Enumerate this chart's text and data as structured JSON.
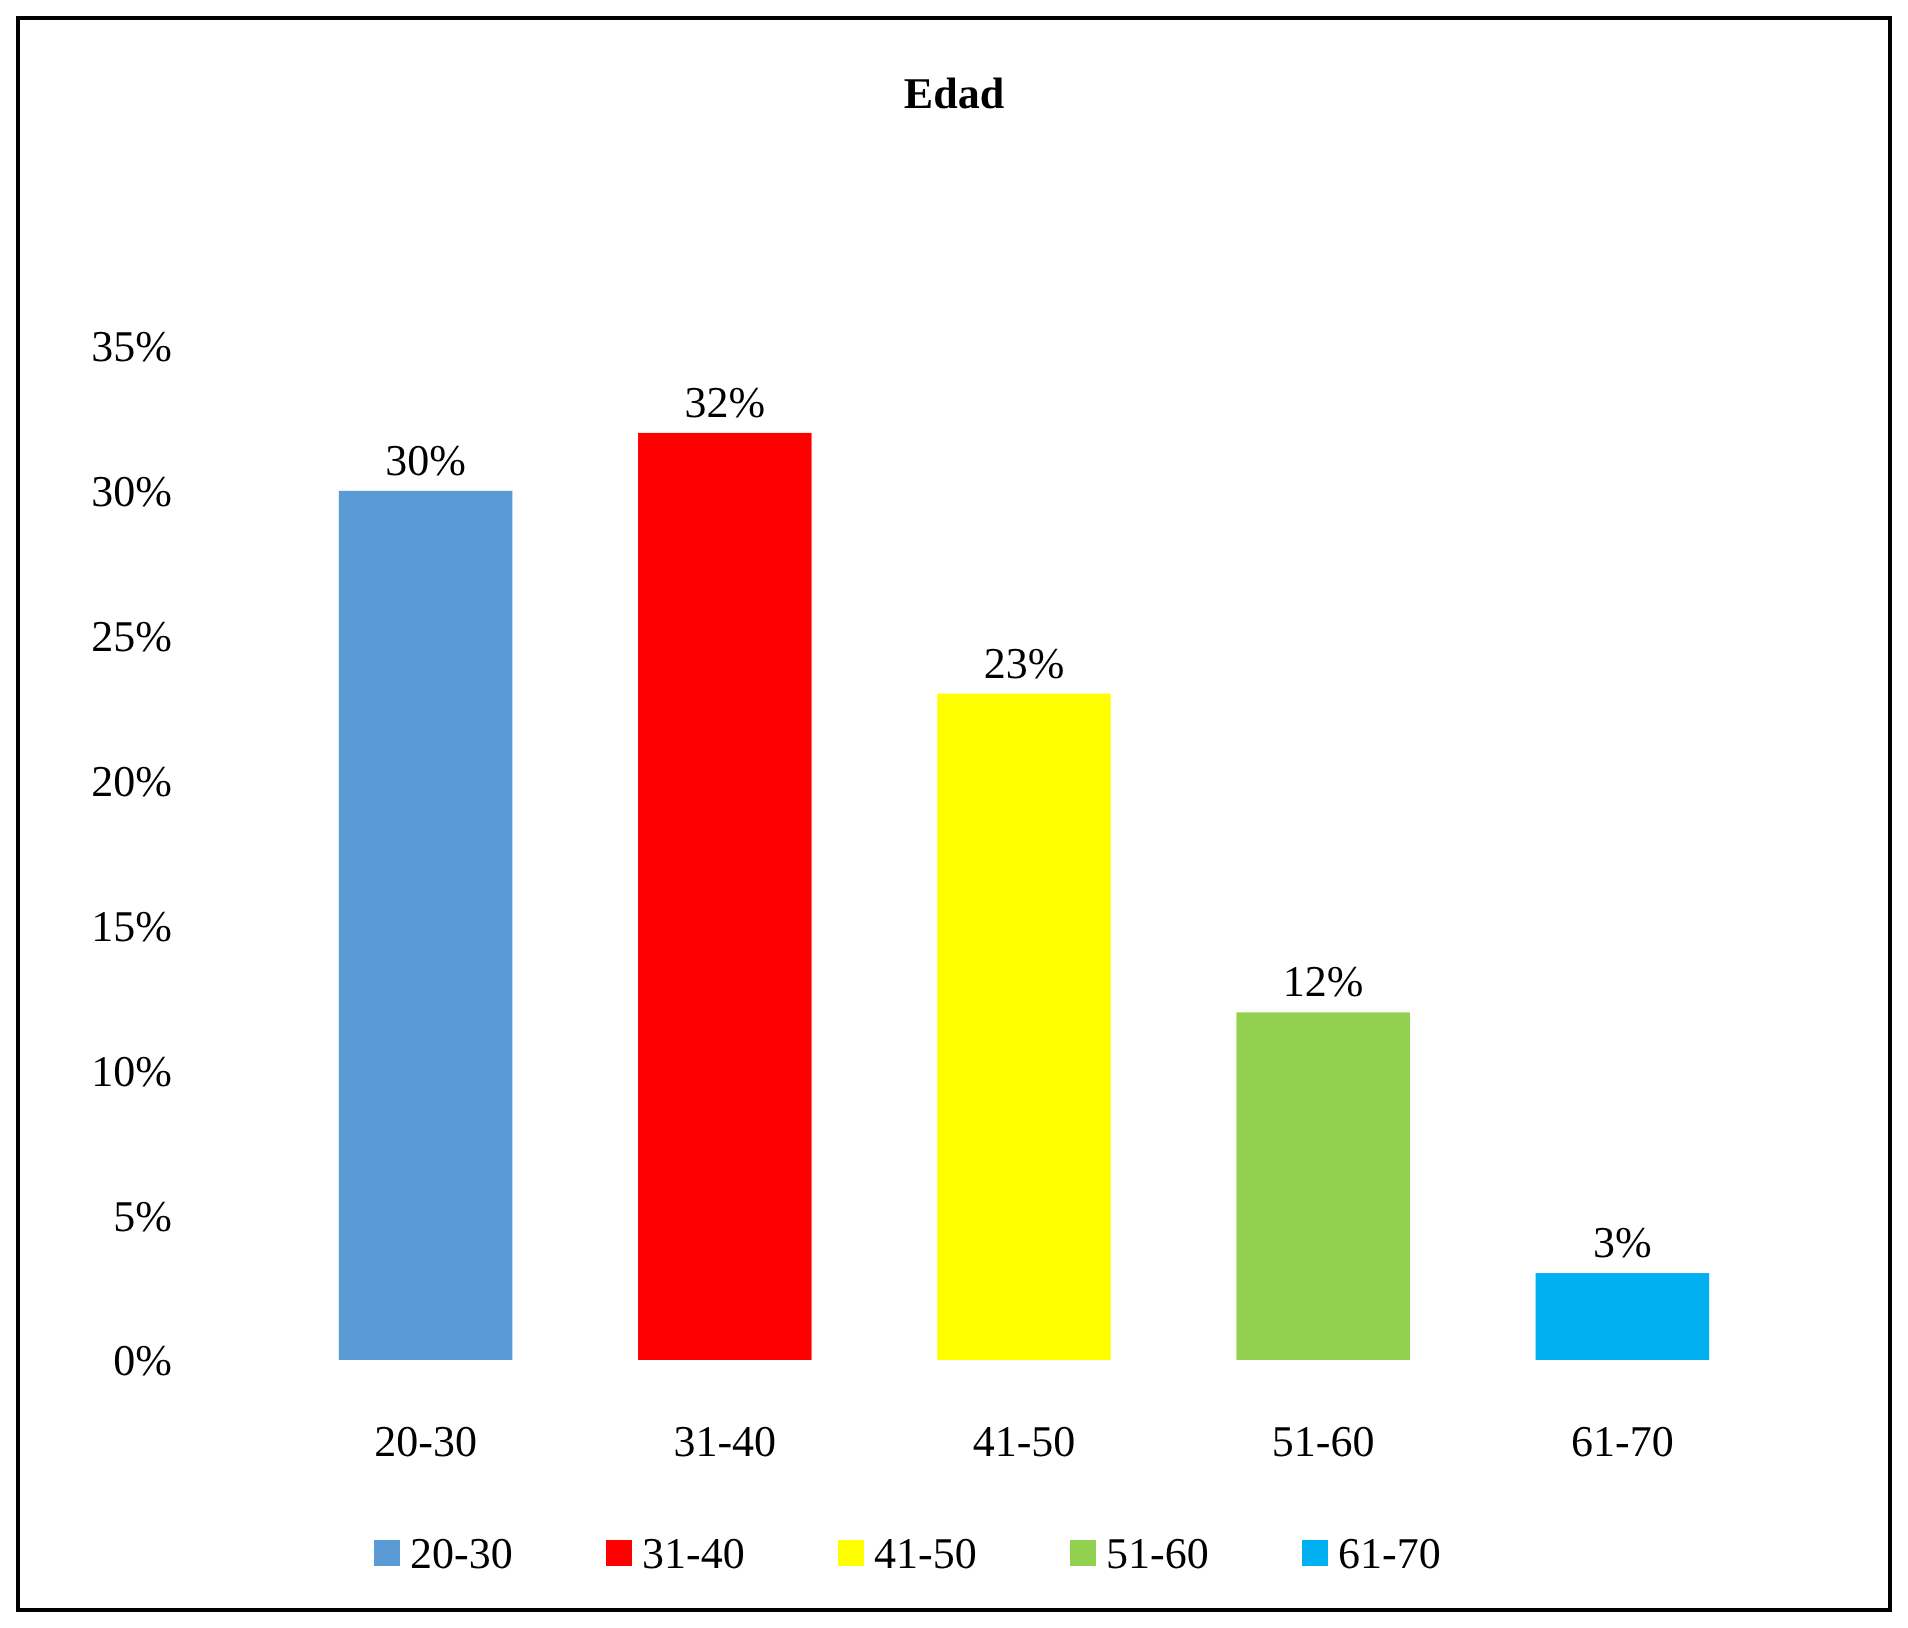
{
  "chart_data": {
    "type": "bar",
    "title": "Edad",
    "stacked": true,
    "categories": [
      "20-30",
      "31-40",
      "41-50",
      "51-60",
      "61-70"
    ],
    "series": [
      {
        "name": "20-30",
        "color": "#5b9bd5",
        "values": [
          30,
          null,
          null,
          null,
          null
        ],
        "value_labels": [
          "30%",
          null,
          null,
          null,
          null
        ]
      },
      {
        "name": "31-40",
        "color": "#ff0000",
        "values": [
          null,
          32,
          null,
          null,
          null
        ],
        "value_labels": [
          null,
          "32%",
          null,
          null,
          null
        ]
      },
      {
        "name": "41-50",
        "color": "#ffff00",
        "values": [
          null,
          null,
          23,
          null,
          null
        ],
        "value_labels": [
          null,
          null,
          "23%",
          null,
          null
        ]
      },
      {
        "name": "51-60",
        "color": "#92d050",
        "values": [
          null,
          null,
          null,
          12,
          null
        ],
        "value_labels": [
          null,
          null,
          null,
          "12%",
          null
        ]
      },
      {
        "name": "61-70",
        "color": "#00b0f0",
        "values": [
          null,
          null,
          null,
          null,
          3
        ],
        "value_labels": [
          null,
          null,
          null,
          null,
          "3%"
        ]
      }
    ],
    "ylim": [
      0,
      35
    ],
    "yticks": [
      {
        "value": 0,
        "label": "0%"
      },
      {
        "value": 5,
        "label": "5%"
      },
      {
        "value": 10,
        "label": "10%"
      },
      {
        "value": 15,
        "label": "15%"
      },
      {
        "value": 20,
        "label": "20%"
      },
      {
        "value": 25,
        "label": "25%"
      },
      {
        "value": 30,
        "label": "30%"
      },
      {
        "value": 35,
        "label": "35%"
      }
    ],
    "grid": false,
    "legend": "bottom"
  }
}
